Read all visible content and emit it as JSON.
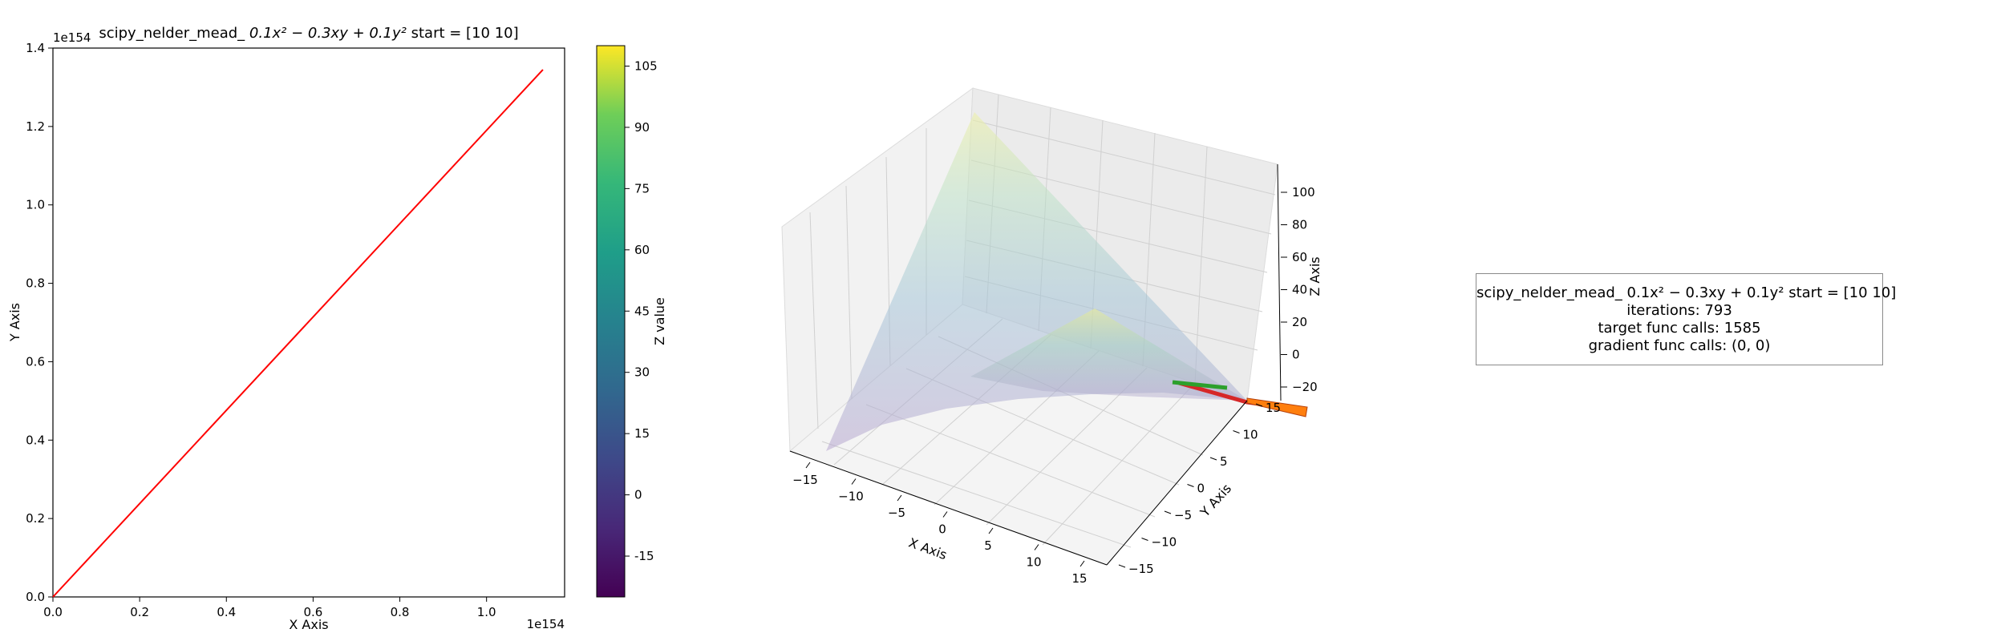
{
  "chart_data": [
    {
      "type": "line",
      "title": "scipy_nelder_mead_ 0.1x² − 0.3xy + 0.1y² start = [10 10]",
      "title_prefix": "scipy_nelder_mead_ ",
      "title_formula": "0.1x² − 0.3xy + 0.1y²",
      "title_suffix": " start = [10 10]",
      "xlabel": "X Axis",
      "ylabel": "Y Axis",
      "x_offset_text": "1e154",
      "y_offset_text": "1e154",
      "xlim": [
        0,
        1.18
      ],
      "ylim": [
        0,
        1.4
      ],
      "x_ticks": [
        "0.0",
        "0.2",
        "0.4",
        "0.6",
        "0.8",
        "1.0"
      ],
      "y_ticks": [
        "0.0",
        "0.2",
        "0.4",
        "0.6",
        "0.8",
        "1.0",
        "1.2",
        "1.4"
      ],
      "grid": false,
      "series": [
        {
          "color": "#ff0000",
          "x": [
            0,
            1.13
          ],
          "y": [
            0,
            1.345
          ]
        }
      ]
    },
    {
      "type": "colorbar",
      "colormap": "viridis",
      "label": "Z value",
      "range": [
        -25,
        110
      ],
      "ticks": [
        "-15",
        "0",
        "15",
        "30",
        "45",
        "60",
        "75",
        "90",
        "105"
      ]
    },
    {
      "type": "surface3d",
      "xlabel": "X Axis",
      "ylabel": "Y Axis",
      "zlabel": "Z Axis",
      "x_ticks": [
        "−15",
        "−10",
        "−5",
        "0",
        "5",
        "10",
        "15"
      ],
      "y_ticks": [
        "−15",
        "−10",
        "−5",
        "0",
        "5",
        "10",
        "15"
      ],
      "z_ticks": [
        "−20",
        "0",
        "20",
        "40",
        "60",
        "80",
        "100"
      ],
      "path_colors": [
        "#2ca02c",
        "#d62728",
        "#ff7f0e"
      ]
    }
  ],
  "info": {
    "line1": "scipy_nelder_mead_ 0.1x² − 0.3xy + 0.1y² start = [10 10]",
    "line2": "iterations: 793",
    "line3": "target func calls: 1585",
    "line4": "gradient func calls: (0, 0)"
  }
}
